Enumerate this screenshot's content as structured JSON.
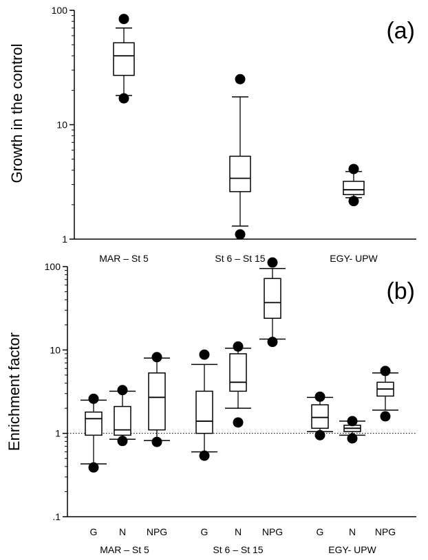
{
  "chart_data": [
    {
      "type": "box",
      "panel_label": "(a)",
      "ylabel": "Growth in the control",
      "yscale": "log",
      "ylim": [
        1,
        100
      ],
      "yticks": [
        {
          "value": 1,
          "label": "1"
        },
        {
          "value": 10,
          "label": "10"
        },
        {
          "value": 100,
          "label": "100"
        }
      ],
      "categories": [
        "MAR – St 5",
        "St 6 – St 15",
        "EGY- UPW"
      ],
      "boxes": [
        {
          "category": "MAR – St 5",
          "whisker_low": 18,
          "q1": 27,
          "median": 40,
          "q3": 52,
          "whisker_high": 70,
          "outliers": [
            17,
            84
          ]
        },
        {
          "category": "St 6 – St 15",
          "whisker_low": 1.3,
          "q1": 2.6,
          "median": 3.4,
          "q3": 5.3,
          "whisker_high": 17.5,
          "outliers": [
            1.1,
            25
          ]
        },
        {
          "category": "EGY- UPW",
          "whisker_low": 2.3,
          "q1": 2.45,
          "median": 2.7,
          "q3": 3.2,
          "whisker_high": 3.9,
          "outliers": [
            2.15,
            4.1
          ]
        }
      ]
    },
    {
      "type": "box",
      "panel_label": "(b)",
      "ylabel": "Enrichment factor",
      "yscale": "log",
      "ylim": [
        0.1,
        100
      ],
      "yticks": [
        {
          "value": 0.1,
          "label": ".1"
        },
        {
          "value": 1,
          "label": "1"
        },
        {
          "value": 10,
          "label": "10"
        },
        {
          "value": 100,
          "label": "100"
        }
      ],
      "reference_line": 1,
      "groups": [
        "MAR – St 5",
        "St 6 – St 15",
        "EGY- UPW"
      ],
      "treatments": [
        "G",
        "N",
        "NPG"
      ],
      "boxes": [
        {
          "group": "MAR – St 5",
          "treatment": "G",
          "whisker_low": 0.43,
          "q1": 0.95,
          "median": 1.5,
          "q3": 1.8,
          "whisker_high": 2.5,
          "outliers": [
            0.39,
            2.6
          ]
        },
        {
          "group": "MAR – St 5",
          "treatment": "N",
          "whisker_low": 0.85,
          "q1": 0.95,
          "median": 1.1,
          "q3": 2.1,
          "whisker_high": 3.2,
          "outliers": [
            0.81,
            3.3
          ]
        },
        {
          "group": "MAR – St 5",
          "treatment": "NPG",
          "whisker_low": 0.82,
          "q1": 1.1,
          "median": 2.7,
          "q3": 5.3,
          "whisker_high": 8.0,
          "outliers": [
            0.79,
            8.2
          ]
        },
        {
          "group": "St 6 – St 15",
          "treatment": "G",
          "whisker_low": 0.6,
          "q1": 1.0,
          "median": 1.4,
          "q3": 3.2,
          "whisker_high": 6.7,
          "outliers": [
            0.54,
            8.8
          ]
        },
        {
          "group": "St 6 – St 15",
          "treatment": "N",
          "whisker_low": 2.0,
          "q1": 3.2,
          "median": 4.1,
          "q3": 9.0,
          "whisker_high": 10.5,
          "outliers": [
            1.35,
            11
          ]
        },
        {
          "group": "St 6 – St 15",
          "treatment": "NPG",
          "whisker_low": 13.5,
          "q1": 24,
          "median": 37,
          "q3": 72,
          "whisker_high": 95,
          "outliers": [
            12.5,
            112
          ]
        },
        {
          "group": "EGY- UPW",
          "treatment": "G",
          "whisker_low": 1.05,
          "q1": 1.15,
          "median": 1.55,
          "q3": 2.2,
          "whisker_high": 2.7,
          "outliers": [
            0.95,
            2.75
          ]
        },
        {
          "group": "EGY- UPW",
          "treatment": "N",
          "whisker_low": 0.95,
          "q1": 1.05,
          "median": 1.15,
          "q3": 1.25,
          "whisker_high": 1.4,
          "outliers": [
            0.87,
            1.4
          ]
        },
        {
          "group": "EGY- UPW",
          "treatment": "NPG",
          "whisker_low": 1.9,
          "q1": 2.8,
          "median": 3.4,
          "q3": 4.1,
          "whisker_high": 5.3,
          "outliers": [
            1.6,
            5.6
          ]
        }
      ]
    }
  ]
}
